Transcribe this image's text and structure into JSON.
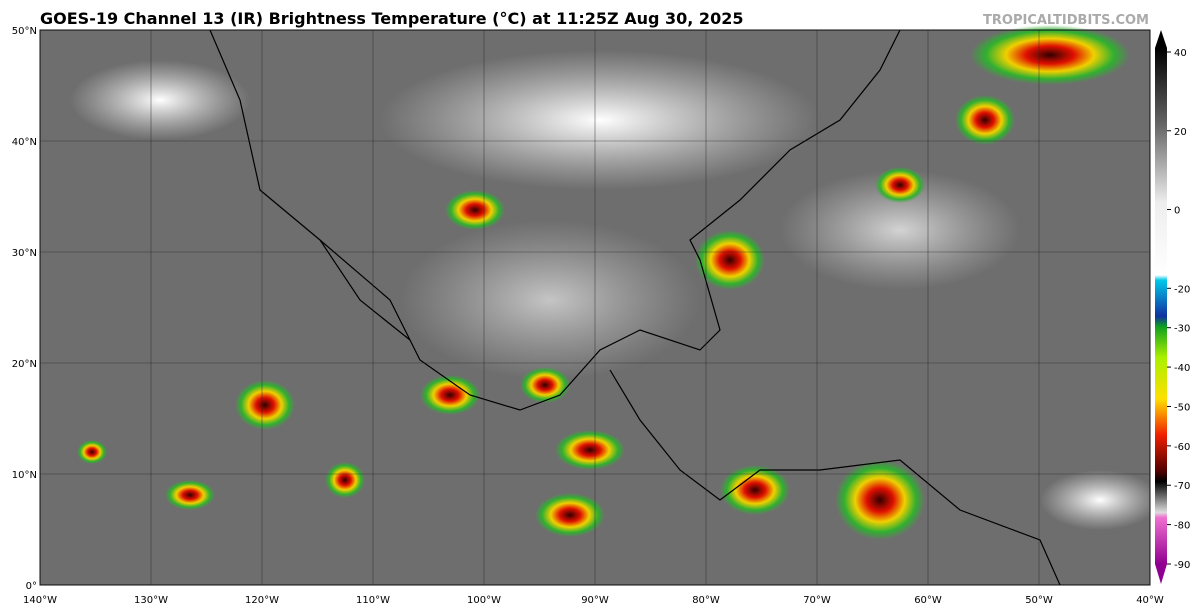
{
  "header": {
    "title": "GOES-19 Channel 13 (IR) Brightness Temperature (°C) at 11:25Z Aug 30, 2025",
    "watermark": "TROPICALTIDBITS.COM"
  },
  "map": {
    "latitudes": [
      {
        "value": 0,
        "label": "0°"
      },
      {
        "value": 10,
        "label": "10°N"
      },
      {
        "value": 20,
        "label": "20°N"
      },
      {
        "value": 30,
        "label": "30°N"
      },
      {
        "value": 40,
        "label": "40°N"
      },
      {
        "value": 50,
        "label": "50°N"
      }
    ],
    "longitudes": [
      {
        "value": -140,
        "label": "140°W"
      },
      {
        "value": -130,
        "label": "130°W"
      },
      {
        "value": -120,
        "label": "120°W"
      },
      {
        "value": -110,
        "label": "110°W"
      },
      {
        "value": -100,
        "label": "100°W"
      },
      {
        "value": -90,
        "label": "90°W"
      },
      {
        "value": -80,
        "label": "80°W"
      },
      {
        "value": -70,
        "label": "70°W"
      },
      {
        "value": -60,
        "label": "60°W"
      },
      {
        "value": -50,
        "label": "50°W"
      },
      {
        "value": -40,
        "label": "40°W"
      }
    ],
    "lat_range": [
      0,
      50
    ],
    "lon_range": [
      -140,
      -40
    ]
  },
  "colorbar": {
    "range": [
      -90,
      40
    ],
    "ticks": [
      40,
      20,
      0,
      -20,
      -30,
      -40,
      -50,
      -60,
      -70,
      -80,
      -90
    ]
  }
}
